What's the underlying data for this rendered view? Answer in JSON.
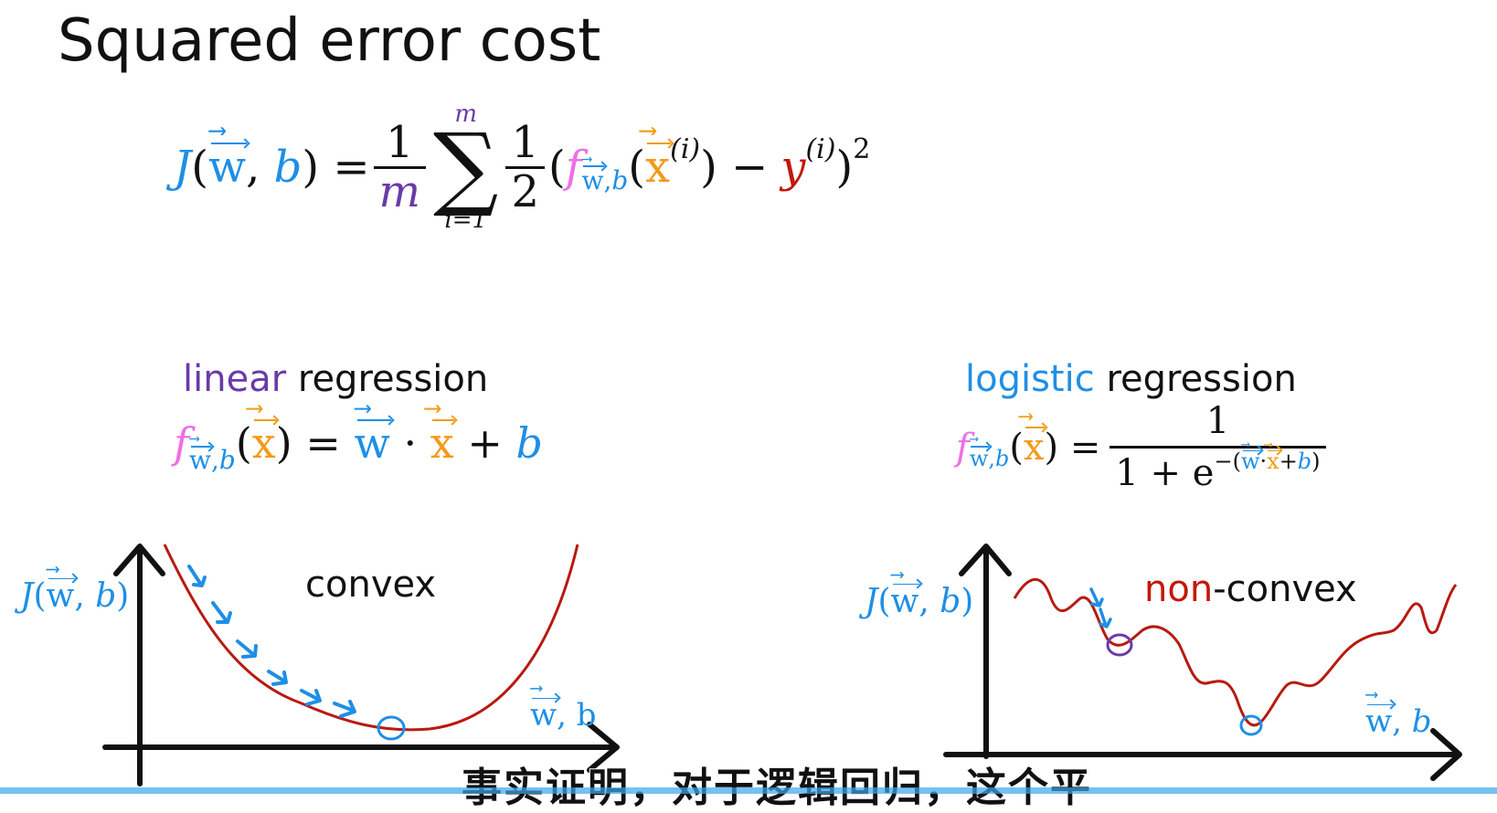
{
  "title": "Squared error cost",
  "cost_formula": {
    "J": "J",
    "w": "w",
    "b": "b",
    "eq": "=",
    "one": "1",
    "m": "m",
    "sum_top": "m",
    "sum_bottom": "i=1",
    "sum_sym": "∑",
    "two": "2",
    "f": "f",
    "sub_wb": "w,b",
    "x": "x",
    "i_sup": "(i)",
    "minus": "−",
    "y": "y",
    "sq": "2"
  },
  "linear": {
    "word1": "linear",
    "word2": "regression",
    "formula": {
      "f": "f",
      "sub": "w,b",
      "x": "x",
      "eq": "=",
      "w": "w",
      "dot": "·",
      "x2": "x",
      "plus": "+",
      "b": "b"
    },
    "ylabel_J": "J",
    "ylabel_w": "w",
    "ylabel_b": "b",
    "xlabel_w": "w",
    "xlabel_b": "b",
    "curve_label": "convex"
  },
  "logistic": {
    "word1": "logistic",
    "word2": "regression",
    "formula": {
      "f": "f",
      "sub": "w,b",
      "x": "x",
      "eq": "=",
      "num": "1",
      "den1": "1 + e",
      "exp_minus": "−(",
      "w": "w",
      "dot": "·",
      "plus": "+",
      "b": "b",
      "close": ")"
    },
    "ylabel_J": "J",
    "ylabel_w": "w",
    "ylabel_b": "b",
    "xlabel_w": "w",
    "xlabel_b": "b",
    "curve_label_1": "non",
    "curve_label_2": "-convex"
  },
  "subtitle": "事实证明，对于逻辑回归，这个平",
  "colors": {
    "blue": "#1e8fe6",
    "purple": "#6a3aa8",
    "pink": "#ee6fe6",
    "orange": "#f29b18",
    "red": "#c4160c",
    "curve": "#b81a10"
  }
}
